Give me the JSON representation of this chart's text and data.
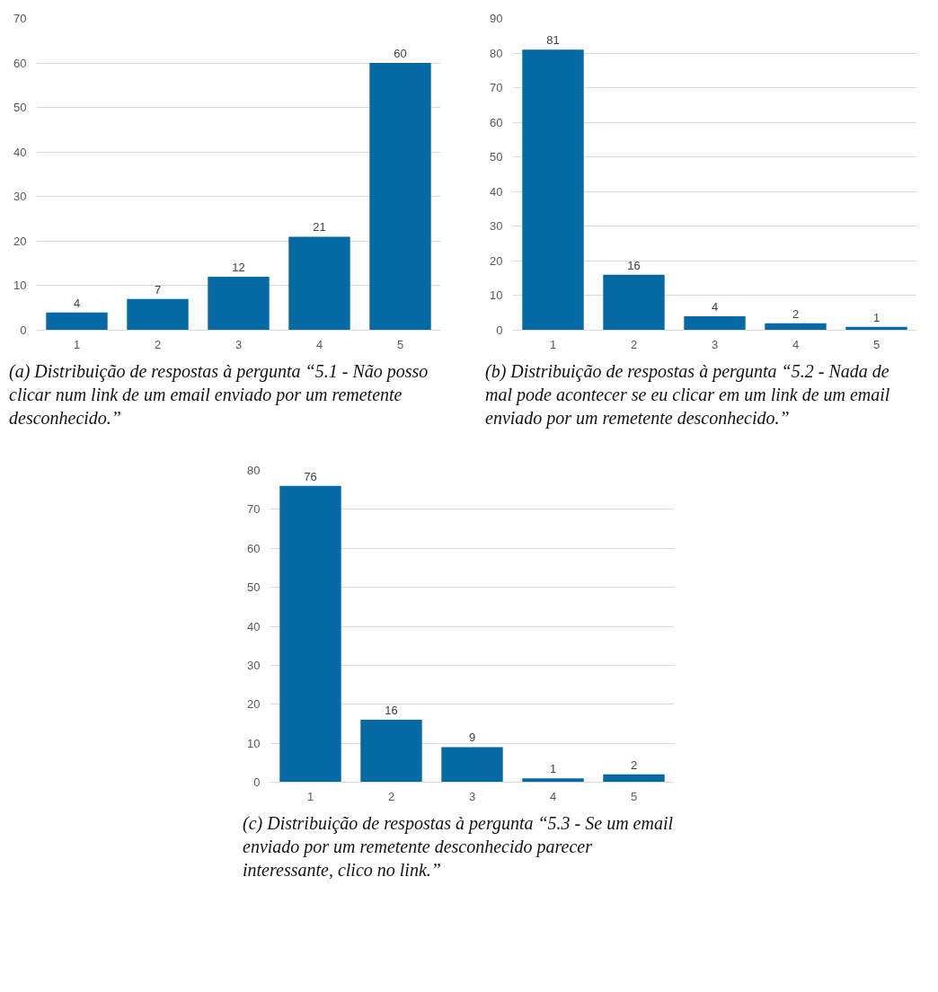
{
  "chart_data": [
    {
      "type": "bar",
      "categories": [
        "1",
        "2",
        "3",
        "4",
        "5"
      ],
      "values": [
        4,
        7,
        12,
        21,
        60
      ],
      "color": "#0569a4",
      "ylim": [
        0,
        70
      ],
      "yticks": [
        0,
        10,
        20,
        30,
        40,
        50,
        60,
        70
      ],
      "grid": "y",
      "data_labels": true,
      "annotations": [
        "(a) Distribuição de respostas à pergunta “5.1 - Não posso clicar num link de um email enviado por um remetente desconhecido.”"
      ]
    },
    {
      "type": "bar",
      "categories": [
        "1",
        "2",
        "3",
        "4",
        "5"
      ],
      "values": [
        81,
        16,
        4,
        2,
        1
      ],
      "color": "#0569a4",
      "ylim": [
        0,
        90
      ],
      "yticks": [
        0,
        10,
        20,
        30,
        40,
        50,
        60,
        70,
        80,
        90
      ],
      "grid": "y",
      "data_labels": true,
      "annotations": [
        "(b) Distribuição de respostas à pergunta “5.2 - Nada de mal pode acontecer se eu clicar em um link de um email enviado por um remetente desconhecido.”"
      ]
    },
    {
      "type": "bar",
      "categories": [
        "1",
        "2",
        "3",
        "4",
        "5"
      ],
      "values": [
        76,
        16,
        9,
        1,
        2
      ],
      "color": "#0569a4",
      "ylim": [
        0,
        80
      ],
      "yticks": [
        0,
        10,
        20,
        30,
        40,
        50,
        60,
        70,
        80
      ],
      "grid": "y",
      "data_labels": true,
      "annotations": [
        "(c) Distribuição de respostas à pergunta “5.3 - Se um email enviado por um remetente desconhecido parecer interessante, clico no link.”"
      ]
    }
  ]
}
